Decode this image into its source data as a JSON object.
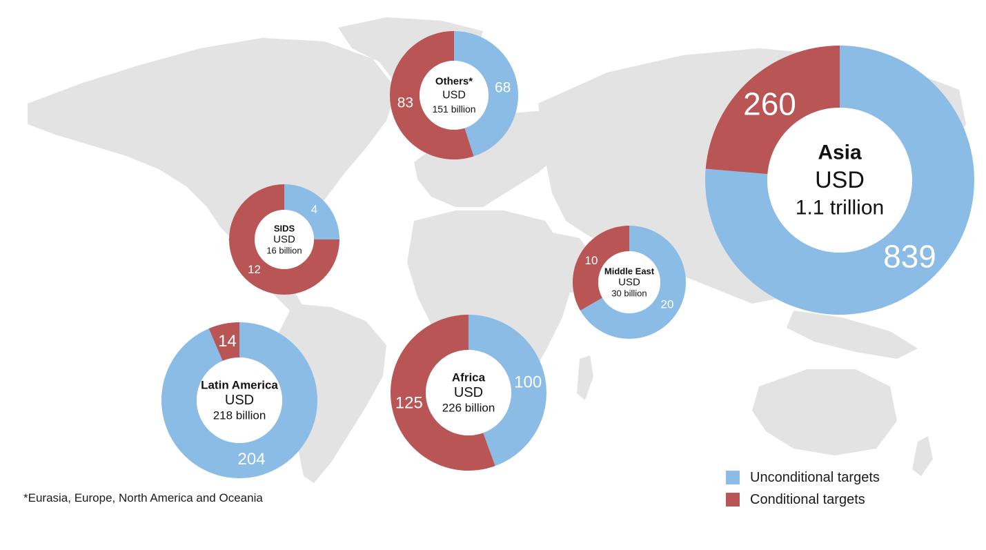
{
  "colors": {
    "unconditional": "#8bbce6",
    "conditional": "#b95554",
    "land": "#e3e3e3",
    "center_text": "#111111",
    "segment_text": "#ffffff"
  },
  "legend": {
    "unconditional_label": "Unconditional targets",
    "conditional_label": "Conditional targets"
  },
  "footnote": "*Eurasia, Europe, North America and Oceania",
  "chart_data": [
    {
      "type": "pie",
      "region": "Others*",
      "currency": "USD",
      "total": "151 billion",
      "unconditional": 68,
      "conditional": 83
    },
    {
      "type": "pie",
      "region": "Asia",
      "currency": "USD",
      "total": "1.1 trillion",
      "unconditional": 839,
      "conditional": 260
    },
    {
      "type": "pie",
      "region": "SIDS",
      "currency": "USD",
      "total": "16 billion",
      "unconditional": 4,
      "conditional": 12
    },
    {
      "type": "pie",
      "region": "Middle East",
      "currency": "USD",
      "total": "30 billion",
      "unconditional": 20,
      "conditional": 10
    },
    {
      "type": "pie",
      "region": "Latin America",
      "currency": "USD",
      "total": "218 billion",
      "unconditional": 204,
      "conditional": 14
    },
    {
      "type": "pie",
      "region": "Africa",
      "currency": "USD",
      "total": "226 billion",
      "unconditional": 100,
      "conditional": 125
    }
  ]
}
